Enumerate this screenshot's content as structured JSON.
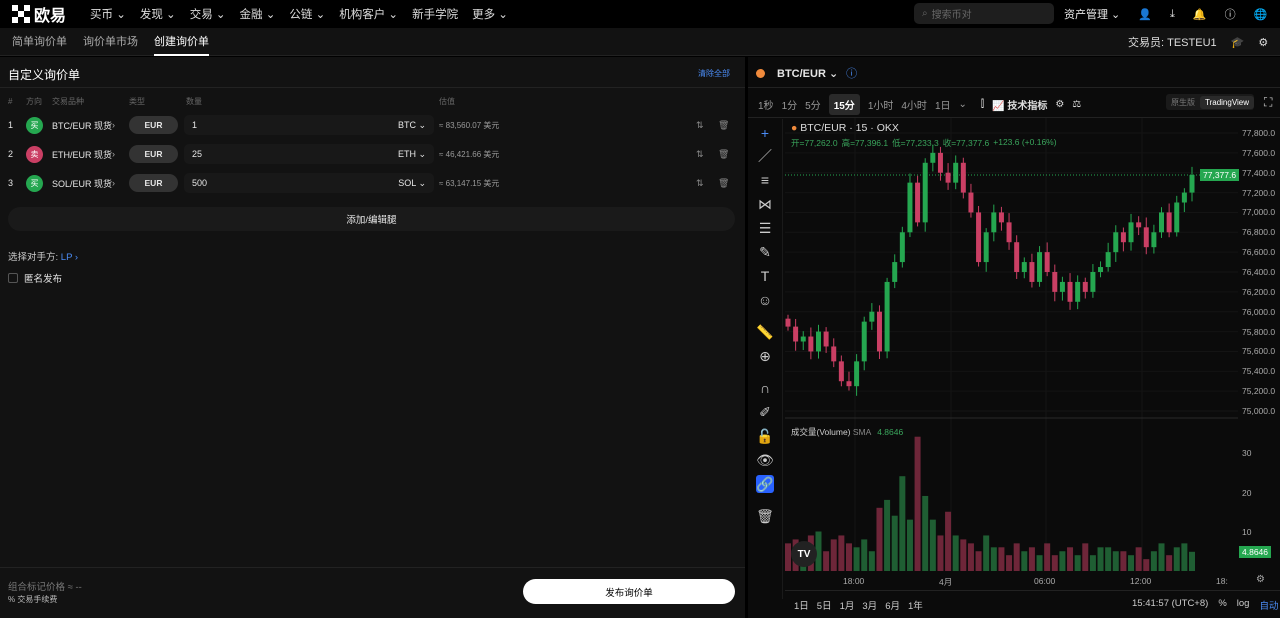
{
  "topnav": {
    "brand": "欧易",
    "items": [
      "买币",
      "发现",
      "交易",
      "金融",
      "公链",
      "机构客户",
      "新手学院",
      "更多"
    ],
    "search_placeholder": "搜索币对",
    "assets": "资产管理"
  },
  "subnav": {
    "tabs": [
      "简单询价单",
      "询价单市场",
      "创建询价单"
    ],
    "active": 2,
    "trader_label": "交易员:",
    "trader": "TESTEU1"
  },
  "form": {
    "title": "自定义询价单",
    "clear_all": "清除全部",
    "headers": [
      "#",
      "方向",
      "交易品种",
      "类型",
      "数量",
      "估值"
    ],
    "rows": [
      {
        "n": "1",
        "side": "买",
        "side_color": "#25a750",
        "instrument": "BTC/EUR 现货",
        "type": "EUR",
        "qty": "1",
        "unit": "BTC",
        "est": "≈ 83,560.07 美元"
      },
      {
        "n": "2",
        "side": "卖",
        "side_color": "#ca3f64",
        "instrument": "ETH/EUR 现货",
        "type": "EUR",
        "qty": "25",
        "unit": "ETH",
        "est": "≈ 46,421.66 美元"
      },
      {
        "n": "3",
        "side": "买",
        "side_color": "#25a750",
        "instrument": "SOL/EUR 现货",
        "type": "EUR",
        "qty": "500",
        "unit": "SOL",
        "est": "≈ 63,147.15 美元"
      }
    ],
    "add_leg": "添加/编辑腿",
    "counterparty_label": "选择对手方:",
    "counterparty": "LP",
    "anonymous": "匿名发布",
    "mark_price_label": "组合标记价格 ≈ --",
    "fee_label": "% 交易手续费",
    "submit": "发布询价单"
  },
  "chart": {
    "pair": "BTC/EUR",
    "timeframes": [
      "1秒",
      "1分",
      "5分",
      "15分",
      "1小时",
      "4小时",
      "1日"
    ],
    "active_tf": "15分",
    "indicators": "技术指标",
    "mode_native": "原生版",
    "mode_tv": "TradingView",
    "legend_title": "BTC/EUR · 15 · OKX",
    "ohlc": {
      "o": "开=77,262.0",
      "h": "高=77,396.1",
      "l": "低=77,233.3",
      "c": "收=77,377.6",
      "chg": "+123.6 (+0.16%)"
    },
    "last_price": "77,377.6",
    "volume_label": "成交量(Volume)",
    "sma_label": "SMA",
    "sma_value": "4.8646",
    "price_ticks": [
      "77,800.0",
      "77,600.0",
      "77,400.0",
      "77,200.0",
      "77,000.0",
      "76,800.0",
      "76,600.0",
      "76,400.0",
      "76,200.0",
      "76,000.0",
      "75,800.0",
      "75,600.0",
      "75,400.0",
      "75,200.0",
      "75,000.0"
    ],
    "volume_ticks": [
      "30",
      "20",
      "10"
    ],
    "time_ticks": [
      "18:00",
      "4月",
      "06:00",
      "12:00",
      "18:"
    ],
    "ranges": [
      "1日",
      "5日",
      "1月",
      "3月",
      "6月",
      "1年"
    ],
    "clock": "15:41:57 (UTC+8)",
    "pct": "%",
    "log": "log",
    "auto": "自动",
    "up_color": "#25a750",
    "down_color": "#ca3f64"
  },
  "chart_data": {
    "type": "candlestick",
    "price_range": [
      75000,
      77800
    ],
    "closes": [
      75850,
      75700,
      75750,
      75600,
      75800,
      75650,
      75500,
      75300,
      75250,
      75500,
      75900,
      76000,
      75600,
      76300,
      76500,
      76800,
      77300,
      76900,
      77500,
      77600,
      77400,
      77300,
      77500,
      77200,
      77000,
      76500,
      76800,
      77000,
      76900,
      76700,
      76400,
      76500,
      76300,
      76600,
      76400,
      76200,
      76300,
      76100,
      76300,
      76200,
      76400,
      76450,
      76600,
      76800,
      76700,
      76900,
      76850,
      76650,
      76800,
      77000,
      76800,
      77100,
      77200,
      77377.6
    ],
    "volumes": [
      7,
      8,
      6,
      9,
      10,
      5,
      8,
      9,
      7,
      6,
      8,
      5,
      16,
      18,
      14,
      24,
      13,
      34,
      19,
      13,
      9,
      15,
      9,
      8,
      7,
      5,
      9,
      6,
      6,
      4,
      7,
      5,
      6,
      4,
      7,
      4,
      5,
      6,
      4,
      7,
      4,
      6,
      6,
      5,
      5,
      4,
      6,
      3,
      5,
      7,
      4,
      6,
      7,
      4.86
    ]
  }
}
